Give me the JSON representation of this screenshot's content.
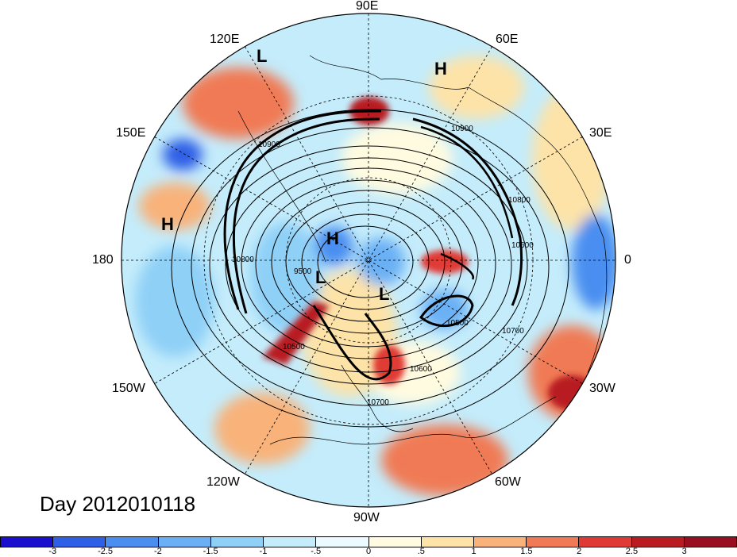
{
  "title": "Day 2012010118",
  "longitude_labels": {
    "e90": "90E",
    "e60": "60E",
    "e30": "30E",
    "zero": "0",
    "w30": "30W",
    "w60": "60W",
    "w90": "90W",
    "w120": "120W",
    "w150": "150W",
    "d180": "180",
    "e150": "150E",
    "e120": "120E"
  },
  "pressure_markers": [
    "L",
    "H",
    "H",
    "H",
    "L",
    "L"
  ],
  "contour_labels": [
    "10900",
    "10800",
    "10600",
    "10700",
    "10500",
    "10600",
    "10700",
    "10500",
    "9500",
    "10900",
    "10800"
  ],
  "colorbar": {
    "labels": [
      "-3",
      "-2.5",
      "-2",
      "-1.5",
      "-1",
      "-.5",
      "0",
      ".5",
      "1",
      "1.5",
      "2",
      "2.5",
      "3"
    ],
    "colors": [
      "#1a0fcf",
      "#2e5fe6",
      "#4a8ef0",
      "#6bb0f5",
      "#8fd0f7",
      "#c4ecfb",
      "#eafaff",
      "#fffbe0",
      "#fde3a8",
      "#f8b27a",
      "#f07a55",
      "#e03a36",
      "#b81c22",
      "#990f1f"
    ]
  }
}
